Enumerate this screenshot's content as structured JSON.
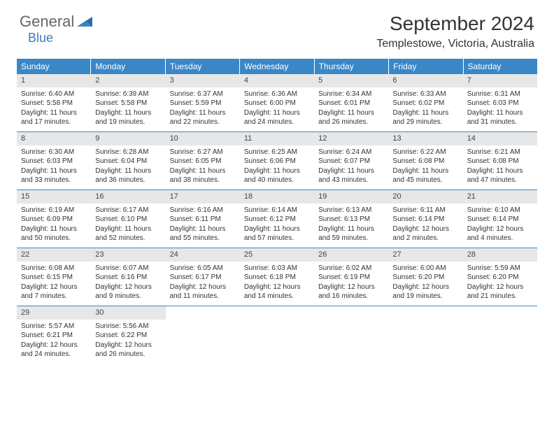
{
  "brand": {
    "part1": "General",
    "part2": "Blue"
  },
  "colors": {
    "header_bg": "#3a87c7",
    "header_text": "#ffffff",
    "daynum_bg": "#e7e7e7",
    "divider": "#3a87c7",
    "logo_gray": "#666666",
    "logo_blue": "#3a7ebf"
  },
  "title": "September 2024",
  "location": "Templestowe, Victoria, Australia",
  "weekdays": [
    "Sunday",
    "Monday",
    "Tuesday",
    "Wednesday",
    "Thursday",
    "Friday",
    "Saturday"
  ],
  "days": [
    {
      "n": "1",
      "sr": "6:40 AM",
      "ss": "5:58 PM",
      "dl": "11 hours and 17 minutes."
    },
    {
      "n": "2",
      "sr": "6:39 AM",
      "ss": "5:58 PM",
      "dl": "11 hours and 19 minutes."
    },
    {
      "n": "3",
      "sr": "6:37 AM",
      "ss": "5:59 PM",
      "dl": "11 hours and 22 minutes."
    },
    {
      "n": "4",
      "sr": "6:36 AM",
      "ss": "6:00 PM",
      "dl": "11 hours and 24 minutes."
    },
    {
      "n": "5",
      "sr": "6:34 AM",
      "ss": "6:01 PM",
      "dl": "11 hours and 26 minutes."
    },
    {
      "n": "6",
      "sr": "6:33 AM",
      "ss": "6:02 PM",
      "dl": "11 hours and 29 minutes."
    },
    {
      "n": "7",
      "sr": "6:31 AM",
      "ss": "6:03 PM",
      "dl": "11 hours and 31 minutes."
    },
    {
      "n": "8",
      "sr": "6:30 AM",
      "ss": "6:03 PM",
      "dl": "11 hours and 33 minutes."
    },
    {
      "n": "9",
      "sr": "6:28 AM",
      "ss": "6:04 PM",
      "dl": "11 hours and 36 minutes."
    },
    {
      "n": "10",
      "sr": "6:27 AM",
      "ss": "6:05 PM",
      "dl": "11 hours and 38 minutes."
    },
    {
      "n": "11",
      "sr": "6:25 AM",
      "ss": "6:06 PM",
      "dl": "11 hours and 40 minutes."
    },
    {
      "n": "12",
      "sr": "6:24 AM",
      "ss": "6:07 PM",
      "dl": "11 hours and 43 minutes."
    },
    {
      "n": "13",
      "sr": "6:22 AM",
      "ss": "6:08 PM",
      "dl": "11 hours and 45 minutes."
    },
    {
      "n": "14",
      "sr": "6:21 AM",
      "ss": "6:08 PM",
      "dl": "11 hours and 47 minutes."
    },
    {
      "n": "15",
      "sr": "6:19 AM",
      "ss": "6:09 PM",
      "dl": "11 hours and 50 minutes."
    },
    {
      "n": "16",
      "sr": "6:17 AM",
      "ss": "6:10 PM",
      "dl": "11 hours and 52 minutes."
    },
    {
      "n": "17",
      "sr": "6:16 AM",
      "ss": "6:11 PM",
      "dl": "11 hours and 55 minutes."
    },
    {
      "n": "18",
      "sr": "6:14 AM",
      "ss": "6:12 PM",
      "dl": "11 hours and 57 minutes."
    },
    {
      "n": "19",
      "sr": "6:13 AM",
      "ss": "6:13 PM",
      "dl": "11 hours and 59 minutes."
    },
    {
      "n": "20",
      "sr": "6:11 AM",
      "ss": "6:14 PM",
      "dl": "12 hours and 2 minutes."
    },
    {
      "n": "21",
      "sr": "6:10 AM",
      "ss": "6:14 PM",
      "dl": "12 hours and 4 minutes."
    },
    {
      "n": "22",
      "sr": "6:08 AM",
      "ss": "6:15 PM",
      "dl": "12 hours and 7 minutes."
    },
    {
      "n": "23",
      "sr": "6:07 AM",
      "ss": "6:16 PM",
      "dl": "12 hours and 9 minutes."
    },
    {
      "n": "24",
      "sr": "6:05 AM",
      "ss": "6:17 PM",
      "dl": "12 hours and 11 minutes."
    },
    {
      "n": "25",
      "sr": "6:03 AM",
      "ss": "6:18 PM",
      "dl": "12 hours and 14 minutes."
    },
    {
      "n": "26",
      "sr": "6:02 AM",
      "ss": "6:19 PM",
      "dl": "12 hours and 16 minutes."
    },
    {
      "n": "27",
      "sr": "6:00 AM",
      "ss": "6:20 PM",
      "dl": "12 hours and 19 minutes."
    },
    {
      "n": "28",
      "sr": "5:59 AM",
      "ss": "6:20 PM",
      "dl": "12 hours and 21 minutes."
    },
    {
      "n": "29",
      "sr": "5:57 AM",
      "ss": "6:21 PM",
      "dl": "12 hours and 24 minutes."
    },
    {
      "n": "30",
      "sr": "5:56 AM",
      "ss": "6:22 PM",
      "dl": "12 hours and 26 minutes."
    }
  ],
  "labels": {
    "sunrise": "Sunrise:",
    "sunset": "Sunset:",
    "daylight": "Daylight:"
  },
  "layout": {
    "start_offset": 0,
    "total_cells": 35,
    "columns": 7
  }
}
